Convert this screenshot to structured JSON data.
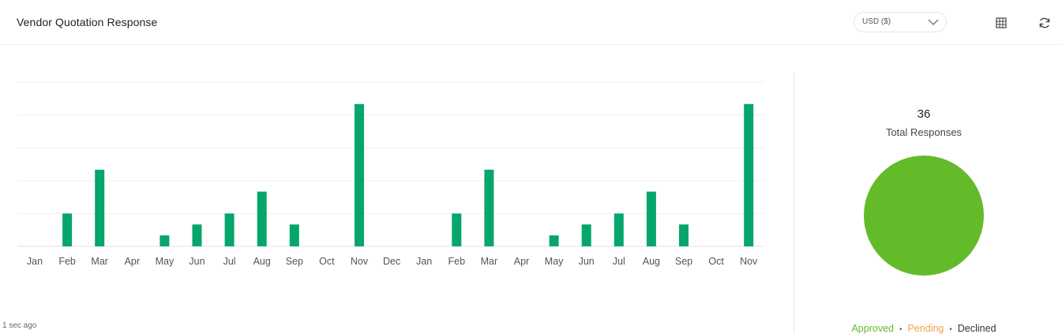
{
  "header": {
    "title": "Vendor Quotation Response",
    "currency": "USD ($)",
    "icons": [
      "chevron-down-icon",
      "table-icon",
      "refresh-icon"
    ]
  },
  "footer": {
    "updated": "1 sec ago"
  },
  "summary": {
    "total": "36",
    "total_label": "Total Responses"
  },
  "legend": {
    "approved": "Approved",
    "pending": "Pending",
    "declined": "Declined"
  },
  "colors": {
    "bar": "#05a66b",
    "approved": "#64bb2a",
    "pending": "#f0a04b",
    "declined": "#333333"
  },
  "chart_data": [
    {
      "type": "bar",
      "categories": [
        "Jan",
        "Feb",
        "Mar",
        "Apr",
        "May",
        "Jun",
        "Jul",
        "Aug",
        "Sep",
        "Oct",
        "Nov",
        "Dec",
        "Jan",
        "Feb",
        "Mar",
        "Apr",
        "May",
        "Jun",
        "Jul",
        "Aug",
        "Sep",
        "Oct",
        "Nov"
      ],
      "values": [
        0,
        3,
        7,
        0,
        1,
        2,
        3,
        5,
        2,
        0,
        13,
        0,
        0,
        3,
        7,
        0,
        1,
        2,
        3,
        5,
        2,
        0,
        13
      ],
      "ylim": [
        0,
        15
      ],
      "grid": true
    },
    {
      "type": "pie",
      "labels": [
        "Approved",
        "Pending",
        "Declined"
      ],
      "values": [
        36,
        0,
        0
      ]
    }
  ]
}
